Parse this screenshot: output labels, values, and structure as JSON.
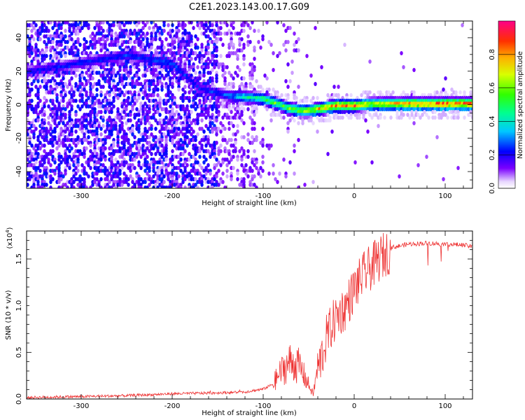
{
  "title": "C2E1.2023.143.00.17.G09",
  "chart_data": [
    {
      "type": "heatmap",
      "xlabel": "Height of straight line (km)",
      "ylabel": "Frequency (Hz)",
      "xlim": [
        -360,
        130
      ],
      "ylim": [
        -50,
        50
      ],
      "xticks": [
        -300,
        -200,
        -100,
        0,
        100
      ],
      "yticks": [
        -40,
        -20,
        0,
        20,
        40
      ],
      "colorbar": {
        "label": "Normalized spectral amplitude",
        "range": [
          0,
          1
        ],
        "ticks": [
          "0.0",
          "0.2",
          "0.4",
          "0.6",
          "0.8"
        ],
        "colormap": "rainbow"
      },
      "ridge": {
        "x": [
          -360,
          -250,
          -200,
          -170,
          -140,
          -120,
          -100,
          -90,
          -80,
          -70,
          -60,
          -50,
          -40,
          -30,
          -20,
          -10,
          0,
          20,
          60,
          100,
          130
        ],
        "y": [
          20,
          30,
          25,
          10,
          6,
          5,
          4,
          2,
          0,
          -2,
          -3,
          -3,
          -2,
          -1,
          0,
          0,
          0,
          1,
          1,
          1,
          1
        ],
        "amplitude": [
          0.22,
          0.25,
          0.28,
          0.22,
          0.3,
          0.45,
          0.5,
          0.6,
          0.55,
          0.6,
          0.65,
          0.7,
          0.75,
          0.8,
          0.85,
          0.85,
          0.85,
          0.7,
          0.85,
          0.9,
          0.9
        ]
      }
    },
    {
      "type": "line",
      "xlabel": "Height of straight line (km)",
      "ylabel": "SNR (10 * v/v)",
      "y_scale_label": "(x10",
      "y_scale_exp": "4",
      "y_scale_close": ")",
      "xlim": [
        -360,
        130
      ],
      "ylim": [
        0,
        1.8
      ],
      "xticks": [
        -300,
        -200,
        -100,
        0,
        100
      ],
      "yticks": [
        "0.0",
        "0.5",
        "1.0",
        "1.5"
      ],
      "ytick_values": [
        0,
        0.5,
        1.0,
        1.5
      ],
      "color": "#ee3333",
      "series": [
        {
          "x": [
            -360,
            -300,
            -250,
            -200,
            -150,
            -120,
            -100,
            -90,
            -80,
            -70,
            -60,
            -50,
            -45,
            -40,
            -35,
            -30,
            -20,
            -10,
            0,
            10,
            20,
            30,
            40,
            60,
            80,
            100,
            120,
            130
          ],
          "y": [
            0.01,
            0.02,
            0.03,
            0.05,
            0.06,
            0.07,
            0.1,
            0.15,
            0.3,
            0.4,
            0.35,
            0.15,
            0.05,
            0.35,
            0.5,
            0.7,
            0.9,
            1.0,
            1.2,
            1.35,
            1.45,
            1.55,
            1.62,
            1.66,
            1.67,
            1.66,
            1.65,
            1.63
          ]
        }
      ]
    }
  ]
}
